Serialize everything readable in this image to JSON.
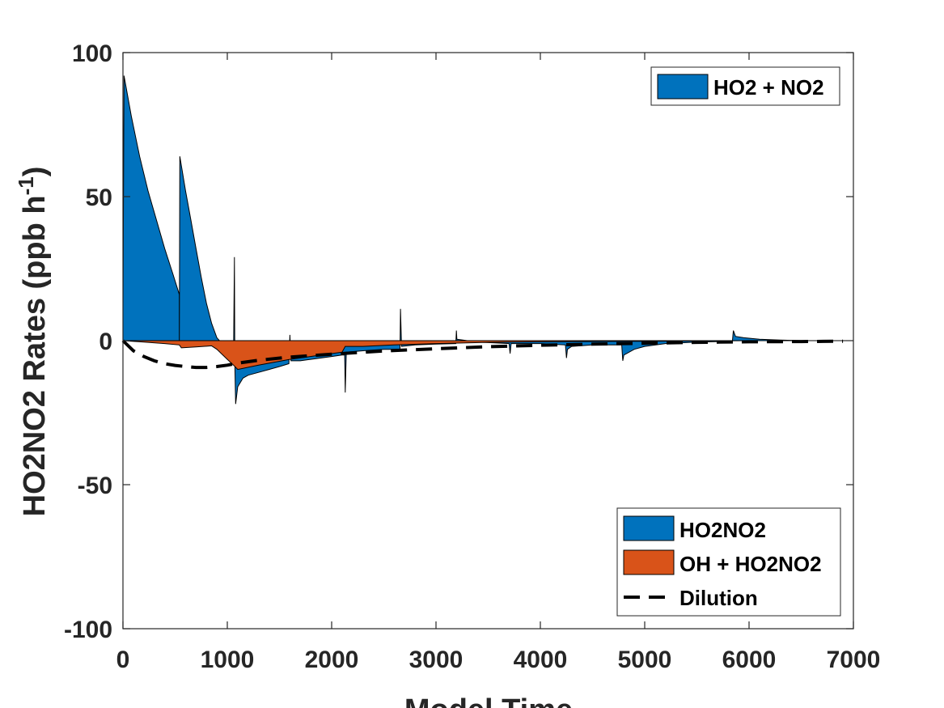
{
  "chart_data": {
    "type": "area",
    "xlabel": "Model Time",
    "ylabel_main": "HO2NO2 Rates (ppb h",
    "ylabel_sup": "-1",
    "ylabel_close": ")",
    "xlim": [
      0,
      7000
    ],
    "ylim": [
      -100,
      100
    ],
    "xticks": [
      0,
      1000,
      2000,
      3000,
      4000,
      5000,
      6000,
      7000
    ],
    "xtick_labels": [
      "0",
      "1000",
      "2000",
      "3000",
      "4000",
      "5000",
      "6000",
      "7000"
    ],
    "yticks": [
      -100,
      -50,
      0,
      50,
      100
    ],
    "ytick_labels": [
      "-100",
      "-50",
      "0",
      "50",
      "100"
    ],
    "grid": false,
    "colors": {
      "blue": "#0072BD",
      "orange": "#D95319",
      "dilution": "#000000"
    },
    "legends": [
      {
        "placement": "top-right",
        "entries": [
          {
            "label": "HO2 + NO2",
            "kind": "patch",
            "color": "#0072BD"
          }
        ]
      },
      {
        "placement": "bottom-right",
        "entries": [
          {
            "label": "HO2NO2",
            "kind": "patch",
            "color": "#0072BD"
          },
          {
            "label": "OH + HO2NO2",
            "kind": "patch",
            "color": "#D95319"
          },
          {
            "label": "Dilution",
            "kind": "dashed-line",
            "color": "#000000"
          }
        ]
      }
    ],
    "series": [
      {
        "name": "HO2 + NO2 / HO2NO2",
        "color": "#0072BD",
        "points": [
          [
            0,
            0
          ],
          [
            0,
            10
          ],
          [
            10,
            92
          ],
          [
            80,
            78
          ],
          [
            160,
            64
          ],
          [
            240,
            52
          ],
          [
            320,
            42
          ],
          [
            400,
            32
          ],
          [
            480,
            23
          ],
          [
            540,
            16
          ],
          [
            540,
            0
          ],
          [
            545,
            64
          ],
          [
            600,
            52
          ],
          [
            650,
            42
          ],
          [
            700,
            32
          ],
          [
            750,
            22
          ],
          [
            800,
            13
          ],
          [
            850,
            6
          ],
          [
            900,
            1
          ],
          [
            950,
            -1
          ],
          [
            1000,
            -3
          ],
          [
            1040,
            -4
          ],
          [
            1060,
            -5
          ],
          [
            1068,
            29
          ],
          [
            1072,
            -8
          ],
          [
            1080,
            -22
          ],
          [
            1100,
            -16
          ],
          [
            1150,
            -13
          ],
          [
            1200,
            -12
          ],
          [
            1300,
            -11
          ],
          [
            1400,
            -10
          ],
          [
            1500,
            -9
          ],
          [
            1590,
            -8
          ],
          [
            1600,
            2
          ],
          [
            1610,
            -7
          ],
          [
            1700,
            -7
          ],
          [
            1800,
            -6.5
          ],
          [
            1900,
            -6
          ],
          [
            2000,
            -5.5
          ],
          [
            2100,
            -5
          ],
          [
            2125,
            -5
          ],
          [
            2130,
            -18
          ],
          [
            2140,
            -4
          ],
          [
            2300,
            -3.5
          ],
          [
            2500,
            -3
          ],
          [
            2655,
            -3
          ],
          [
            2660,
            11
          ],
          [
            2670,
            -2
          ],
          [
            2800,
            -1.5
          ],
          [
            3000,
            -1.2
          ],
          [
            3190,
            -1
          ],
          [
            3195,
            3.5
          ],
          [
            3200,
            0.5
          ],
          [
            3400,
            -0.5
          ],
          [
            3700,
            -1
          ],
          [
            3710,
            -4.5
          ],
          [
            3720,
            -1
          ],
          [
            4000,
            -1
          ],
          [
            4240,
            -1.5
          ],
          [
            4250,
            -6
          ],
          [
            4260,
            -3
          ],
          [
            4300,
            -2
          ],
          [
            4500,
            -1.5
          ],
          [
            4780,
            -1.5
          ],
          [
            4790,
            -7
          ],
          [
            4800,
            -5
          ],
          [
            4900,
            -3
          ],
          [
            5000,
            -2
          ],
          [
            5200,
            -1
          ],
          [
            5500,
            -0.5
          ],
          [
            5840,
            -0.2
          ],
          [
            5850,
            3.5
          ],
          [
            5870,
            1.5
          ],
          [
            5950,
            1
          ],
          [
            6100,
            0.5
          ],
          [
            6300,
            0.2
          ],
          [
            6500,
            0
          ],
          [
            6900,
            0
          ]
        ]
      },
      {
        "name": "OH + HO2NO2",
        "color": "#D95319",
        "points": [
          [
            0,
            0
          ],
          [
            200,
            -0.5
          ],
          [
            400,
            -1
          ],
          [
            540,
            -1.5
          ],
          [
            560,
            -2.5
          ],
          [
            700,
            -2.2
          ],
          [
            850,
            -1.8
          ],
          [
            900,
            -3
          ],
          [
            1000,
            -6.5
          ],
          [
            1060,
            -8.5
          ],
          [
            1100,
            -10
          ],
          [
            1300,
            -8.5
          ],
          [
            1600,
            -6.5
          ],
          [
            1900,
            -5
          ],
          [
            2100,
            -4
          ],
          [
            2130,
            -2
          ],
          [
            2300,
            -2
          ],
          [
            2600,
            -1.5
          ],
          [
            3000,
            -1
          ],
          [
            3500,
            -0.6
          ],
          [
            4000,
            -0.4
          ],
          [
            5000,
            -0.2
          ],
          [
            6000,
            0
          ],
          [
            6900,
            0
          ]
        ]
      },
      {
        "name": "Dilution",
        "color": "#000000",
        "style": "dashed",
        "points": [
          [
            0,
            0
          ],
          [
            100,
            -3.5
          ],
          [
            200,
            -5.5
          ],
          [
            300,
            -7
          ],
          [
            400,
            -8
          ],
          [
            500,
            -8.6
          ],
          [
            600,
            -9
          ],
          [
            700,
            -9.3
          ],
          [
            800,
            -9.3
          ],
          [
            900,
            -9
          ],
          [
            1000,
            -8.5
          ],
          [
            1100,
            -7.8
          ],
          [
            1300,
            -6.8
          ],
          [
            1600,
            -5.7
          ],
          [
            2000,
            -4.7
          ],
          [
            2500,
            -3.6
          ],
          [
            3000,
            -2.8
          ],
          [
            3500,
            -2.1
          ],
          [
            4000,
            -1.6
          ],
          [
            4500,
            -1.2
          ],
          [
            5000,
            -0.9
          ],
          [
            5500,
            -0.6
          ],
          [
            6000,
            -0.4
          ],
          [
            6500,
            -0.3
          ],
          [
            6900,
            -0.2
          ]
        ]
      }
    ]
  }
}
